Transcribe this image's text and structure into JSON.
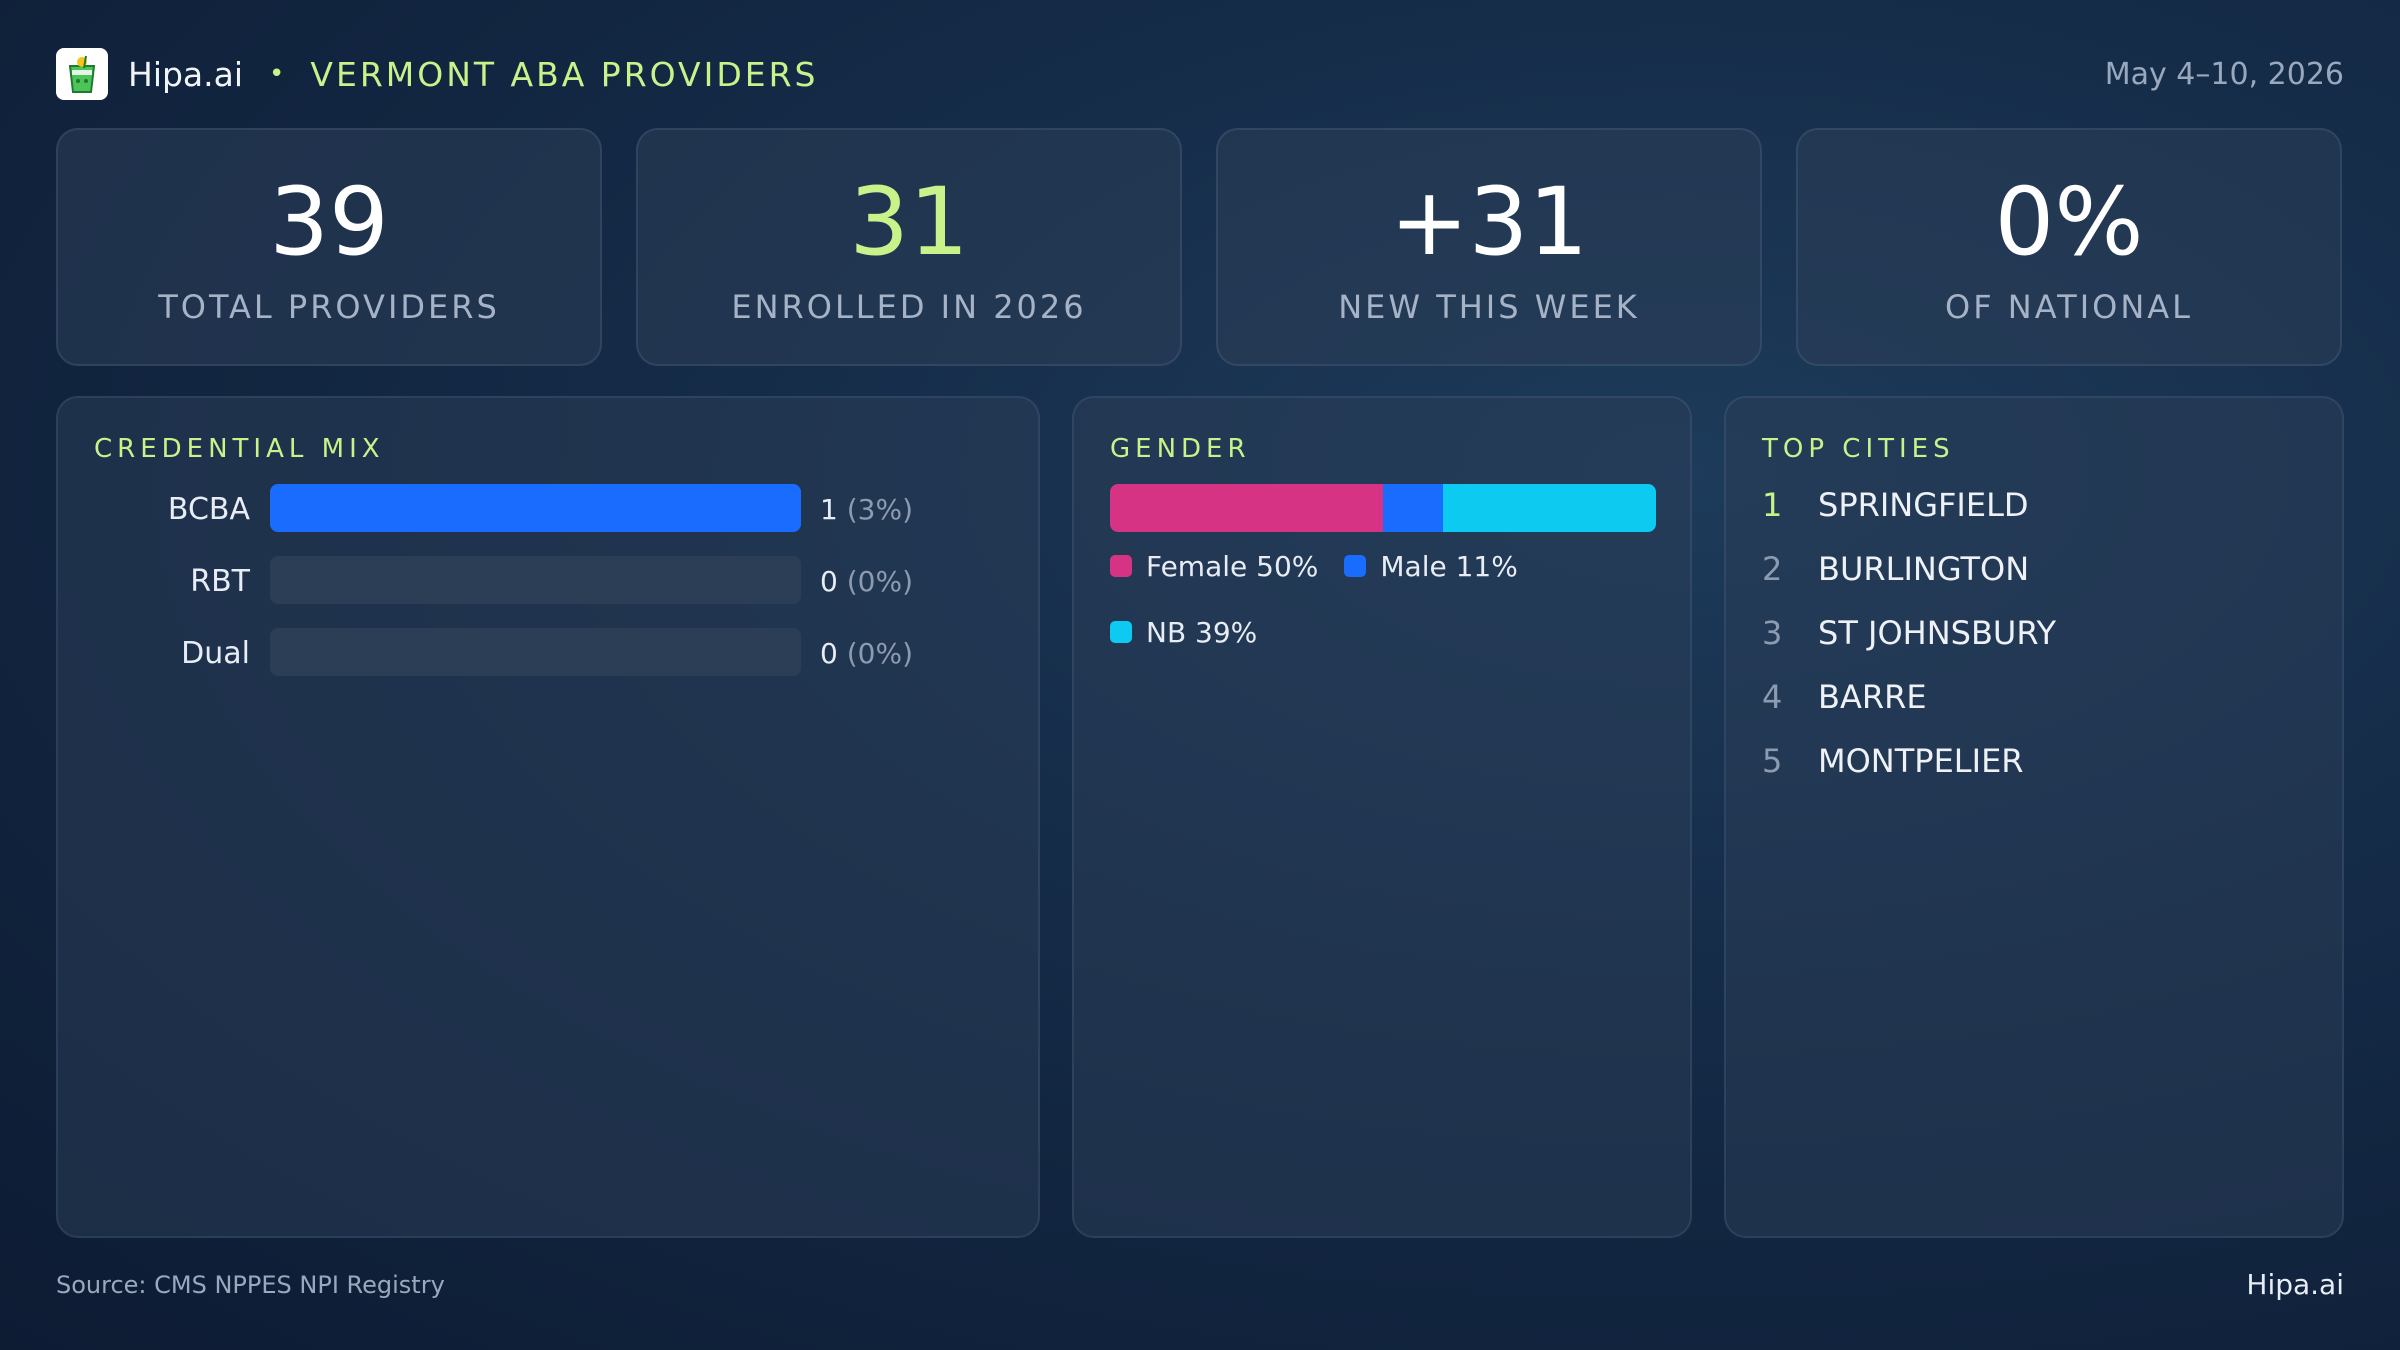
{
  "header": {
    "brand": "Hipa.ai",
    "separator": "•",
    "title": "VERMONT ABA PROVIDERS",
    "date": "May 4–10, 2026"
  },
  "stats": [
    {
      "value": "39",
      "label": "TOTAL PROVIDERS",
      "color": "#ffffff"
    },
    {
      "value": "31",
      "label": "ENROLLED IN 2026",
      "color": "#c9f28a"
    },
    {
      "value": "+31",
      "label": "NEW THIS WEEK",
      "color": "#ffffff"
    },
    {
      "value": "0%",
      "label": "OF NATIONAL",
      "color": "#ffffff"
    }
  ],
  "credential_mix": {
    "title": "CREDENTIAL MIX",
    "rows": [
      {
        "label": "BCBA",
        "count": "1",
        "pct": "(3%)",
        "fill_fraction": 1.0
      },
      {
        "label": "RBT",
        "count": "0",
        "pct": "(0%)",
        "fill_fraction": 0
      },
      {
        "label": "Dual",
        "count": "0",
        "pct": "(0%)",
        "fill_fraction": 0
      }
    ]
  },
  "gender": {
    "title": "GENDER",
    "segments": [
      {
        "label": "Female 50%",
        "share": 50,
        "color": "#d63384"
      },
      {
        "label": "Male 11%",
        "share": 11,
        "color": "#1a6cff"
      },
      {
        "label": "NB 39%",
        "share": 39,
        "color": "#0dcaf0"
      }
    ]
  },
  "top_cities": {
    "title": "TOP CITIES",
    "items": [
      {
        "rank": "1",
        "name": "SPRINGFIELD"
      },
      {
        "rank": "2",
        "name": "BURLINGTON"
      },
      {
        "rank": "3",
        "name": "ST JOHNSBURY"
      },
      {
        "rank": "4",
        "name": "BARRE"
      },
      {
        "rank": "5",
        "name": "MONTPELIER"
      }
    ]
  },
  "footer": {
    "source": "Source: CMS NPPES NPI Registry",
    "brand": "Hipa.ai"
  },
  "colors": {
    "accent": "#c9f28a",
    "blue": "#1a6cff",
    "pink": "#d63384",
    "cyan": "#0dcaf0"
  }
}
